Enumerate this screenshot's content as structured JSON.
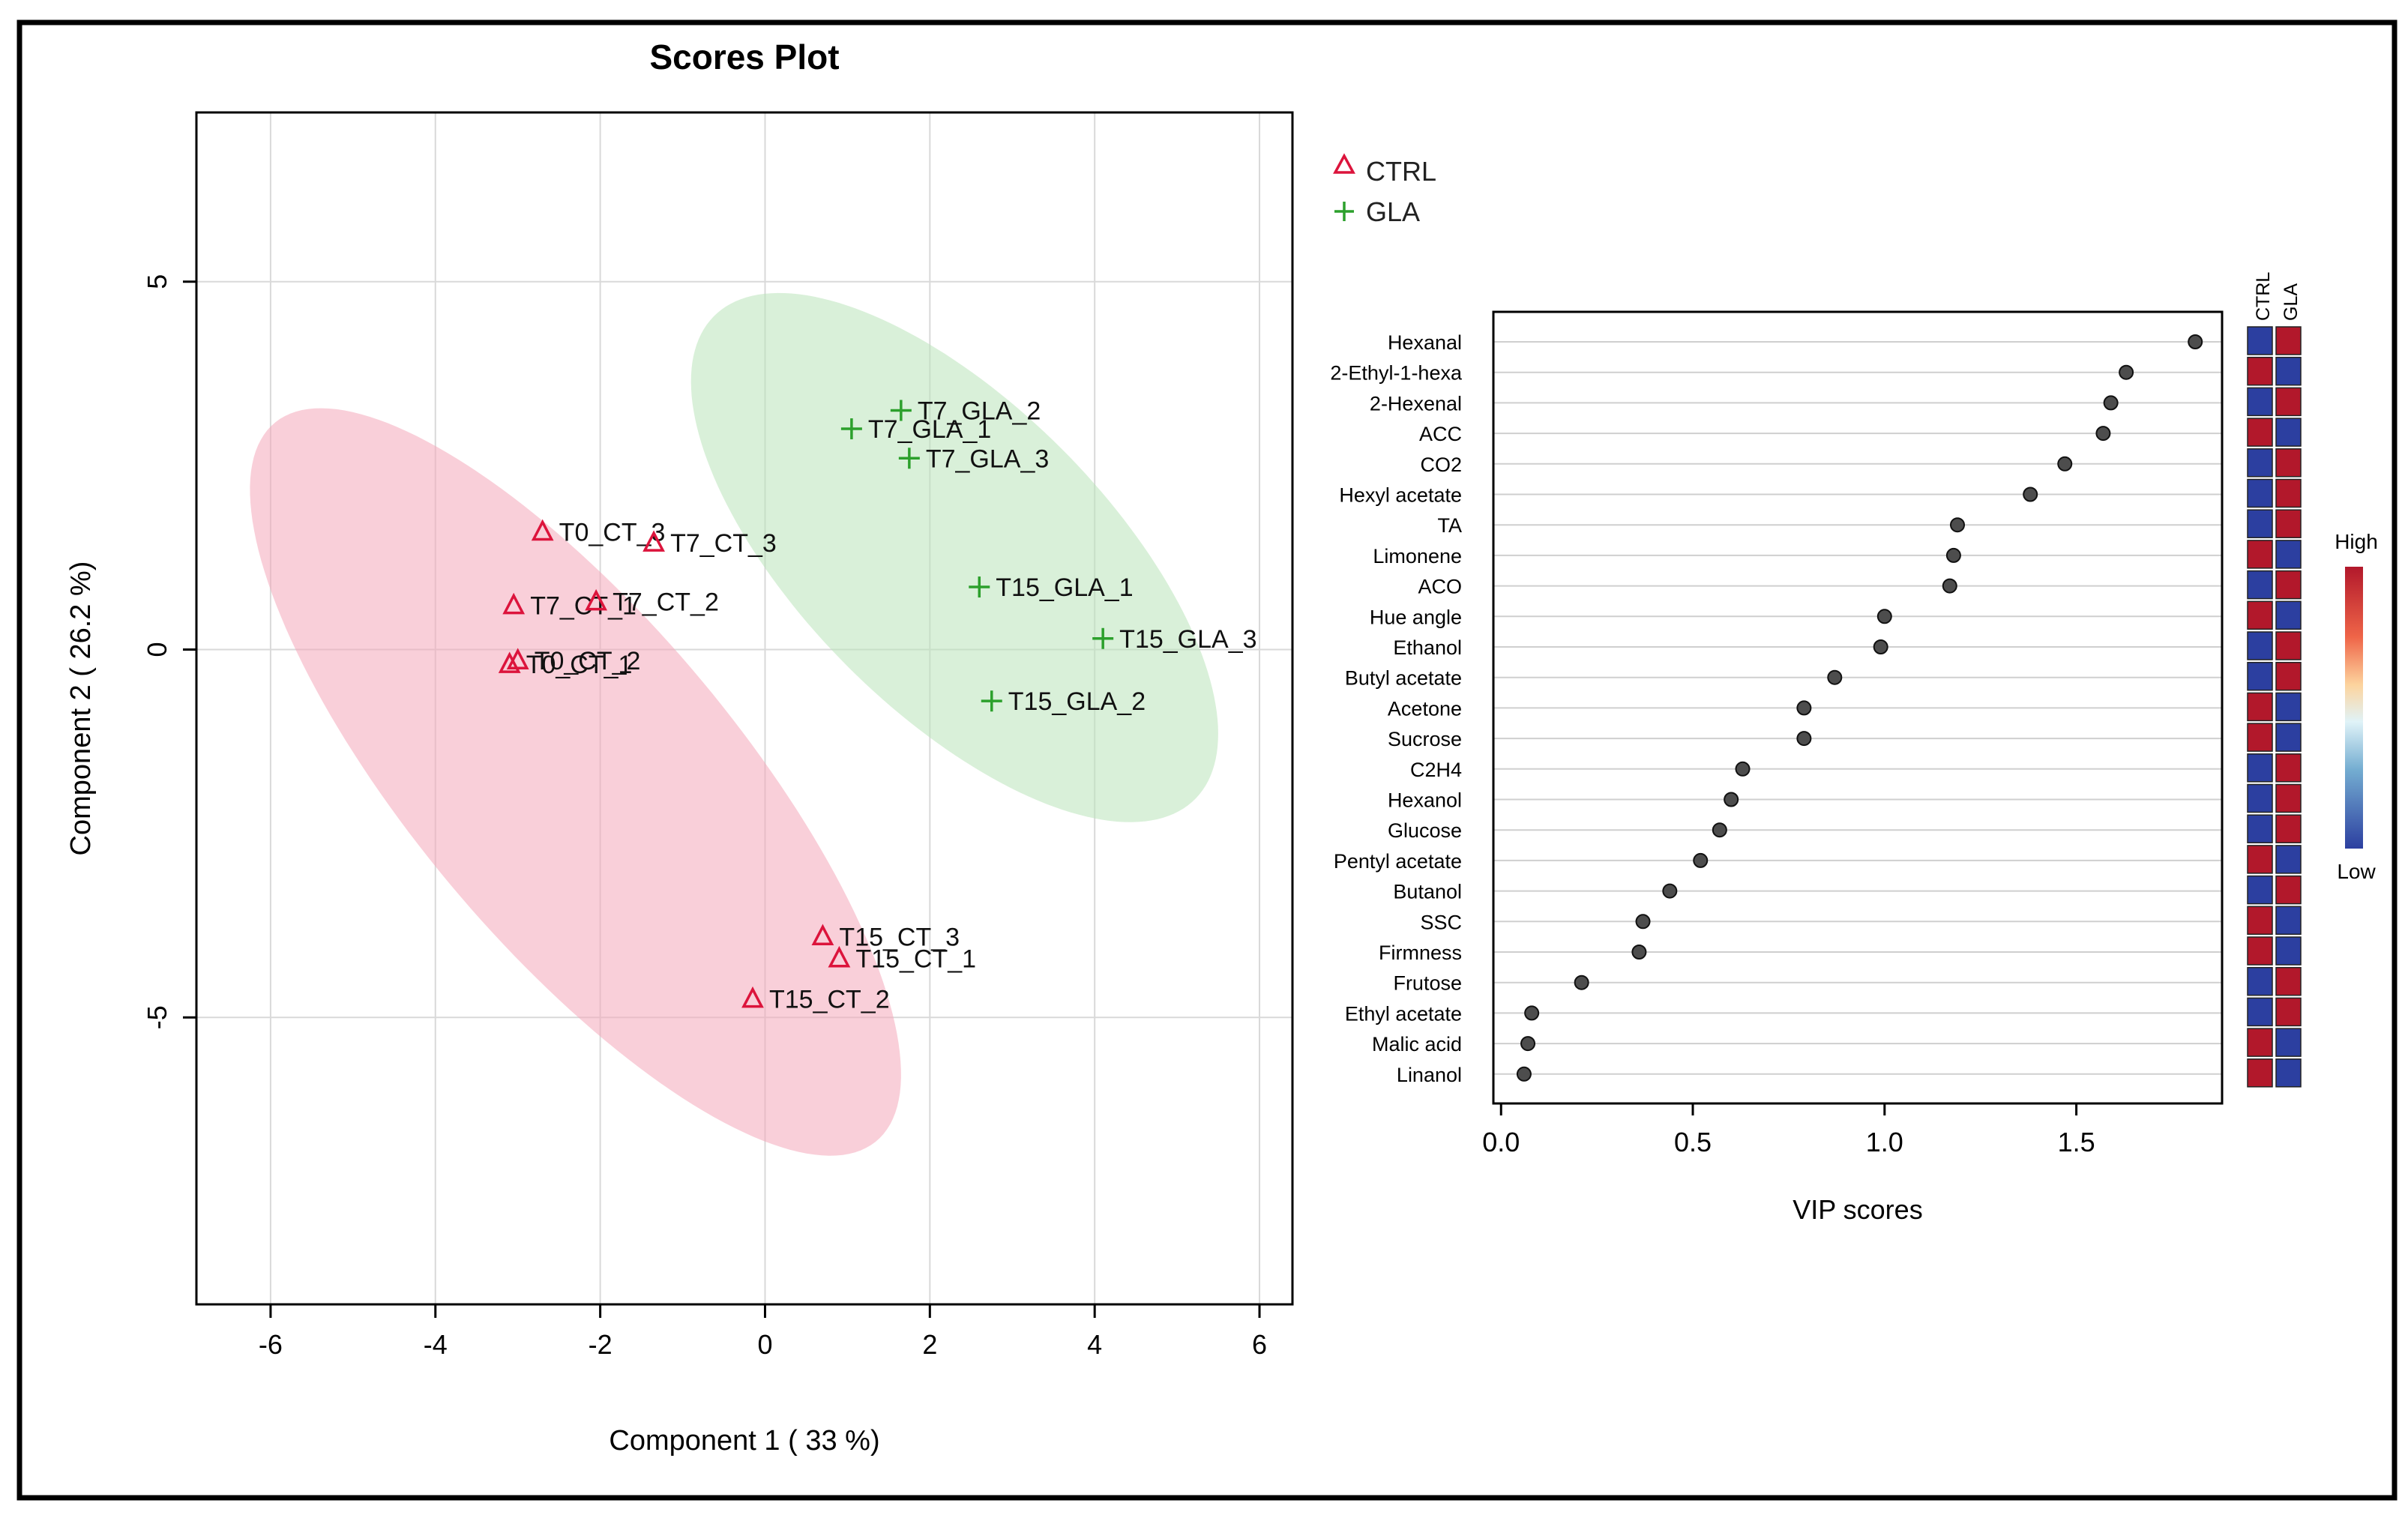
{
  "chart_data": [
    {
      "type": "scatter",
      "title": "Scores Plot",
      "xlabel": "Component 1 ( 33 %)",
      "ylabel": "Component 2 ( 26.2 %)",
      "xlim": [
        -6.9,
        6.4
      ],
      "ylim": [
        -8.9,
        7.3
      ],
      "xticks": [
        -6,
        -4,
        -2,
        0,
        2,
        4,
        6
      ],
      "yticks": [
        -5,
        0,
        5
      ],
      "grid": true,
      "legend_position": "top-right",
      "series": [
        {
          "name": "CTRL",
          "marker": "triangle",
          "color": "#dc143c",
          "ellipse_color": "#f4a7b9",
          "ellipse": {
            "cx": -2.3,
            "cy": -1.8,
            "rx": 6.1,
            "ry": 2.05,
            "angle_deg": -54
          },
          "points": [
            {
              "label": "T0_CT_3",
              "x": -2.7,
              "y": 1.6
            },
            {
              "label": "T7_CT_3",
              "x": -1.35,
              "y": 1.45
            },
            {
              "label": "T7_CT_1",
              "x": -3.05,
              "y": 0.6
            },
            {
              "label": "T7_CT_2",
              "x": -2.05,
              "y": 0.65
            },
            {
              "label": "T0_CT_1",
              "x": -3.1,
              "y": -0.2
            },
            {
              "label": "T0_CT_2",
              "x": -3.0,
              "y": -0.15
            },
            {
              "label": "T15_CT_3",
              "x": 0.7,
              "y": -3.9
            },
            {
              "label": "T15_CT_1",
              "x": 0.9,
              "y": -4.2
            },
            {
              "label": "T15_CT_2",
              "x": -0.15,
              "y": -4.75
            }
          ]
        },
        {
          "name": "GLA",
          "marker": "plus",
          "color": "#2ca02c",
          "ellipse_color": "#b9e4b9",
          "ellipse": {
            "cx": 2.3,
            "cy": 1.25,
            "rx": 4.4,
            "ry": 1.95,
            "angle_deg": -50
          },
          "points": [
            {
              "label": "T7_GLA_2",
              "x": 1.65,
              "y": 3.25
            },
            {
              "label": "T7_GLA_1",
              "x": 1.05,
              "y": 3.0
            },
            {
              "label": "T7_GLA_3",
              "x": 1.75,
              "y": 2.6
            },
            {
              "label": "T15_GLA_1",
              "x": 2.6,
              "y": 0.85
            },
            {
              "label": "T15_GLA_3",
              "x": 4.1,
              "y": 0.15
            },
            {
              "label": "T15_GLA_2",
              "x": 2.75,
              "y": -0.7
            }
          ]
        }
      ]
    },
    {
      "type": "scatter",
      "subtype": "vip-dot-plot",
      "xlabel": "VIP scores",
      "xlim": [
        -0.02,
        1.88
      ],
      "xticks": [
        0.0,
        0.5,
        1.0,
        1.5
      ],
      "xtick_labels": [
        "0.0",
        "0.5",
        "1.0",
        "1.5"
      ],
      "heatmap_columns": [
        "CTRL",
        "GLA"
      ],
      "colorbar": {
        "high_label": "High",
        "low_label": "Low",
        "high_color": "#b2182b",
        "low_color": "#2c3fa0"
      },
      "features": [
        {
          "name": "Hexanal",
          "vip": 1.81,
          "levels": [
            "low",
            "high"
          ]
        },
        {
          "name": "2-Ethyl-1-hexa",
          "vip": 1.63,
          "levels": [
            "high",
            "low"
          ]
        },
        {
          "name": "2-Hexenal",
          "vip": 1.59,
          "levels": [
            "low",
            "high"
          ]
        },
        {
          "name": "ACC",
          "vip": 1.57,
          "levels": [
            "high",
            "low"
          ]
        },
        {
          "name": "CO2",
          "vip": 1.47,
          "levels": [
            "low",
            "high"
          ]
        },
        {
          "name": "Hexyl acetate",
          "vip": 1.38,
          "levels": [
            "low",
            "high"
          ]
        },
        {
          "name": "TA",
          "vip": 1.19,
          "levels": [
            "low",
            "high"
          ]
        },
        {
          "name": "Limonene",
          "vip": 1.18,
          "levels": [
            "high",
            "low"
          ]
        },
        {
          "name": "ACO",
          "vip": 1.17,
          "levels": [
            "low",
            "high"
          ]
        },
        {
          "name": "Hue angle",
          "vip": 1.0,
          "levels": [
            "high",
            "low"
          ]
        },
        {
          "name": "Ethanol",
          "vip": 0.99,
          "levels": [
            "low",
            "high"
          ]
        },
        {
          "name": "Butyl acetate",
          "vip": 0.87,
          "levels": [
            "low",
            "high"
          ]
        },
        {
          "name": "Acetone",
          "vip": 0.79,
          "levels": [
            "high",
            "low"
          ]
        },
        {
          "name": "Sucrose",
          "vip": 0.79,
          "levels": [
            "high",
            "low"
          ]
        },
        {
          "name": "C2H4",
          "vip": 0.63,
          "levels": [
            "low",
            "high"
          ]
        },
        {
          "name": "Hexanol",
          "vip": 0.6,
          "levels": [
            "low",
            "high"
          ]
        },
        {
          "name": "Glucose",
          "vip": 0.57,
          "levels": [
            "low",
            "high"
          ]
        },
        {
          "name": "Pentyl acetate",
          "vip": 0.52,
          "levels": [
            "high",
            "low"
          ]
        },
        {
          "name": "Butanol",
          "vip": 0.44,
          "levels": [
            "low",
            "high"
          ]
        },
        {
          "name": "SSC",
          "vip": 0.37,
          "levels": [
            "high",
            "low"
          ]
        },
        {
          "name": "Firmness",
          "vip": 0.36,
          "levels": [
            "high",
            "low"
          ]
        },
        {
          "name": "Frutose",
          "vip": 0.21,
          "levels": [
            "low",
            "high"
          ]
        },
        {
          "name": "Ethyl acetate",
          "vip": 0.08,
          "levels": [
            "low",
            "high"
          ]
        },
        {
          "name": "Malic acid",
          "vip": 0.07,
          "levels": [
            "high",
            "low"
          ]
        },
        {
          "name": "Linanol",
          "vip": 0.06,
          "levels": [
            "high",
            "low"
          ]
        }
      ]
    }
  ]
}
